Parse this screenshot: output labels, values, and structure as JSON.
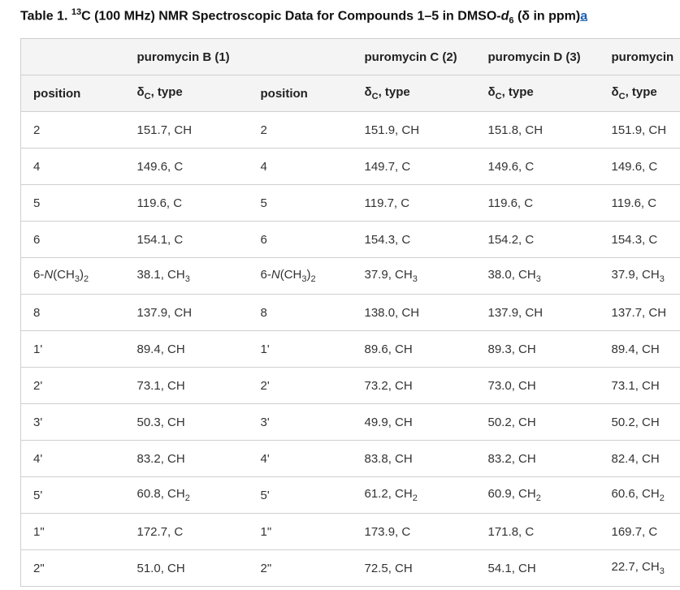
{
  "title": {
    "prefix": "Table 1. ",
    "isotope_mass": "13",
    "main": "C (100 MHz) NMR Spectroscopic Data for Compounds 1–5 in DMSO-",
    "solvent_italic": "d",
    "solvent_sub": "6",
    "suffix": " (δ in ppm)",
    "footnote_link": "a"
  },
  "header_row1": [
    "",
    "puromycin B (1)",
    "",
    "puromycin C (2)",
    "puromycin D (3)",
    "puromycin"
  ],
  "header_row2": [
    "position",
    "δ",
    "position",
    "δ",
    "δ",
    "δ"
  ],
  "delta_sub": "C",
  "delta_type": ", type",
  "rows": [
    {
      "pos": "2",
      "b": "151.7, CH",
      "pos2": "2",
      "c": "151.9, CH",
      "d": "151.8, CH",
      "e": "151.9, CH"
    },
    {
      "pos": "4",
      "b": "149.6, C",
      "pos2": "4",
      "c": "149.7, C",
      "d": "149.6, C",
      "e": "149.6, C"
    },
    {
      "pos": "5",
      "b": "119.6, C",
      "pos2": "5",
      "c": "119.7, C",
      "d": "119.6, C",
      "e": "119.6, C"
    },
    {
      "pos": "6",
      "b": "154.1, C",
      "pos2": "6",
      "c": "154.3, C",
      "d": "154.2, C",
      "e": "154.3, C"
    },
    {
      "pos": "6-N(CH3)2",
      "b": "38.1, CH3",
      "pos2": "6-N(CH3)2",
      "c": "37.9, CH3",
      "d": "38.0, CH3",
      "e": "37.9, CH3"
    },
    {
      "pos": "8",
      "b": "137.9, CH",
      "pos2": "8",
      "c": "138.0, CH",
      "d": "137.9, CH",
      "e": "137.7, CH"
    },
    {
      "pos": "1'",
      "b": "89.4, CH",
      "pos2": "1'",
      "c": "89.6, CH",
      "d": "89.3, CH",
      "e": "89.4, CH"
    },
    {
      "pos": "2'",
      "b": "73.1, CH",
      "pos2": "2'",
      "c": "73.2, CH",
      "d": "73.0, CH",
      "e": "73.1, CH"
    },
    {
      "pos": "3'",
      "b": "50.3, CH",
      "pos2": "3'",
      "c": "49.9, CH",
      "d": "50.2, CH",
      "e": "50.2, CH"
    },
    {
      "pos": "4'",
      "b": "83.2, CH",
      "pos2": "4'",
      "c": "83.8, CH",
      "d": "83.2, CH",
      "e": "82.4, CH"
    },
    {
      "pos": "5'",
      "b": "60.8, CH2",
      "pos2": "5'",
      "c": "61.2, CH2",
      "d": "60.9, CH2",
      "e": "60.6, CH2"
    },
    {
      "pos": "1\"",
      "b": "172.7, C",
      "pos2": "1\"",
      "c": "173.9, C",
      "d": "171.8, C",
      "e": "169.7, C"
    },
    {
      "pos": "2\"",
      "b": "51.0, CH",
      "pos2": "2\"",
      "c": "72.5, CH",
      "d": "54.1, CH",
      "e": "22.7, CH3"
    }
  ]
}
